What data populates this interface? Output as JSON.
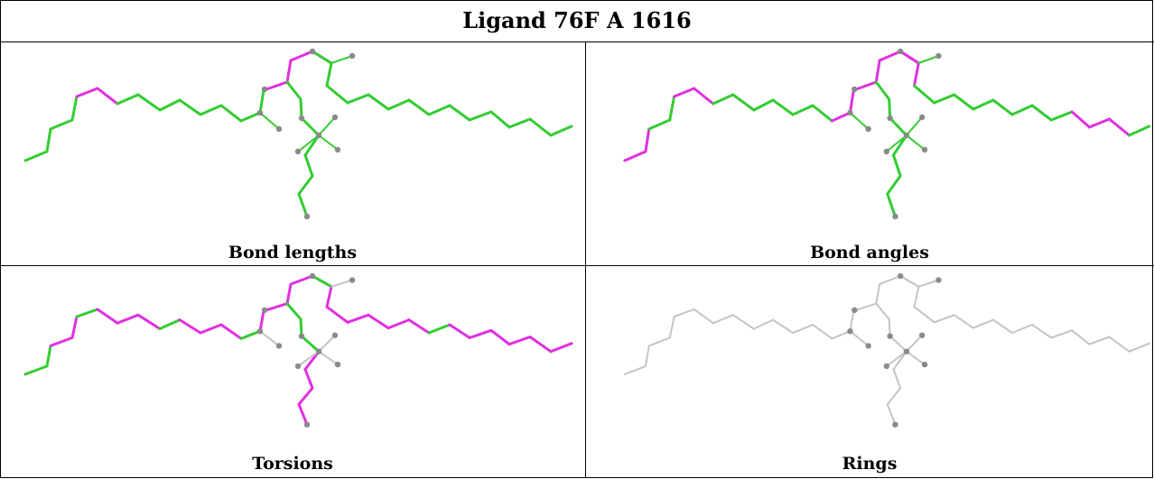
{
  "title": "Ligand 76F A 1616",
  "colors": {
    "ok": "#33cc33",
    "outlier": "#e030e0",
    "none": "#c4c4c4",
    "atom": "#8a8a8a"
  },
  "panels": [
    {
      "caption": "Bond lengths"
    },
    {
      "caption": "Bond angles"
    },
    {
      "caption": "Torsions"
    },
    {
      "caption": "Rings"
    }
  ]
}
